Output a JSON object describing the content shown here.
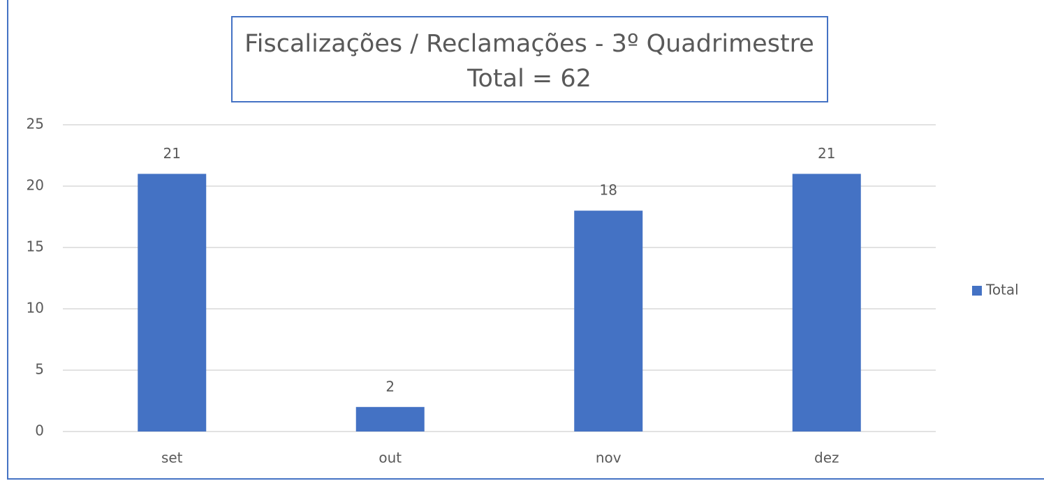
{
  "chart_data": {
    "type": "bar",
    "title": "Fiscalizações / Reclamações - 3º Quadrimestre",
    "subtitle": "Total = 62",
    "categories": [
      "set",
      "out",
      "nov",
      "dez"
    ],
    "series": [
      {
        "name": "Total",
        "color": "#4472c4",
        "values": [
          21,
          2,
          18,
          21
        ]
      }
    ],
    "ylim": [
      0,
      25
    ],
    "yticks": [
      0,
      5,
      10,
      15,
      20,
      25
    ],
    "grid": true,
    "legend": "right"
  }
}
